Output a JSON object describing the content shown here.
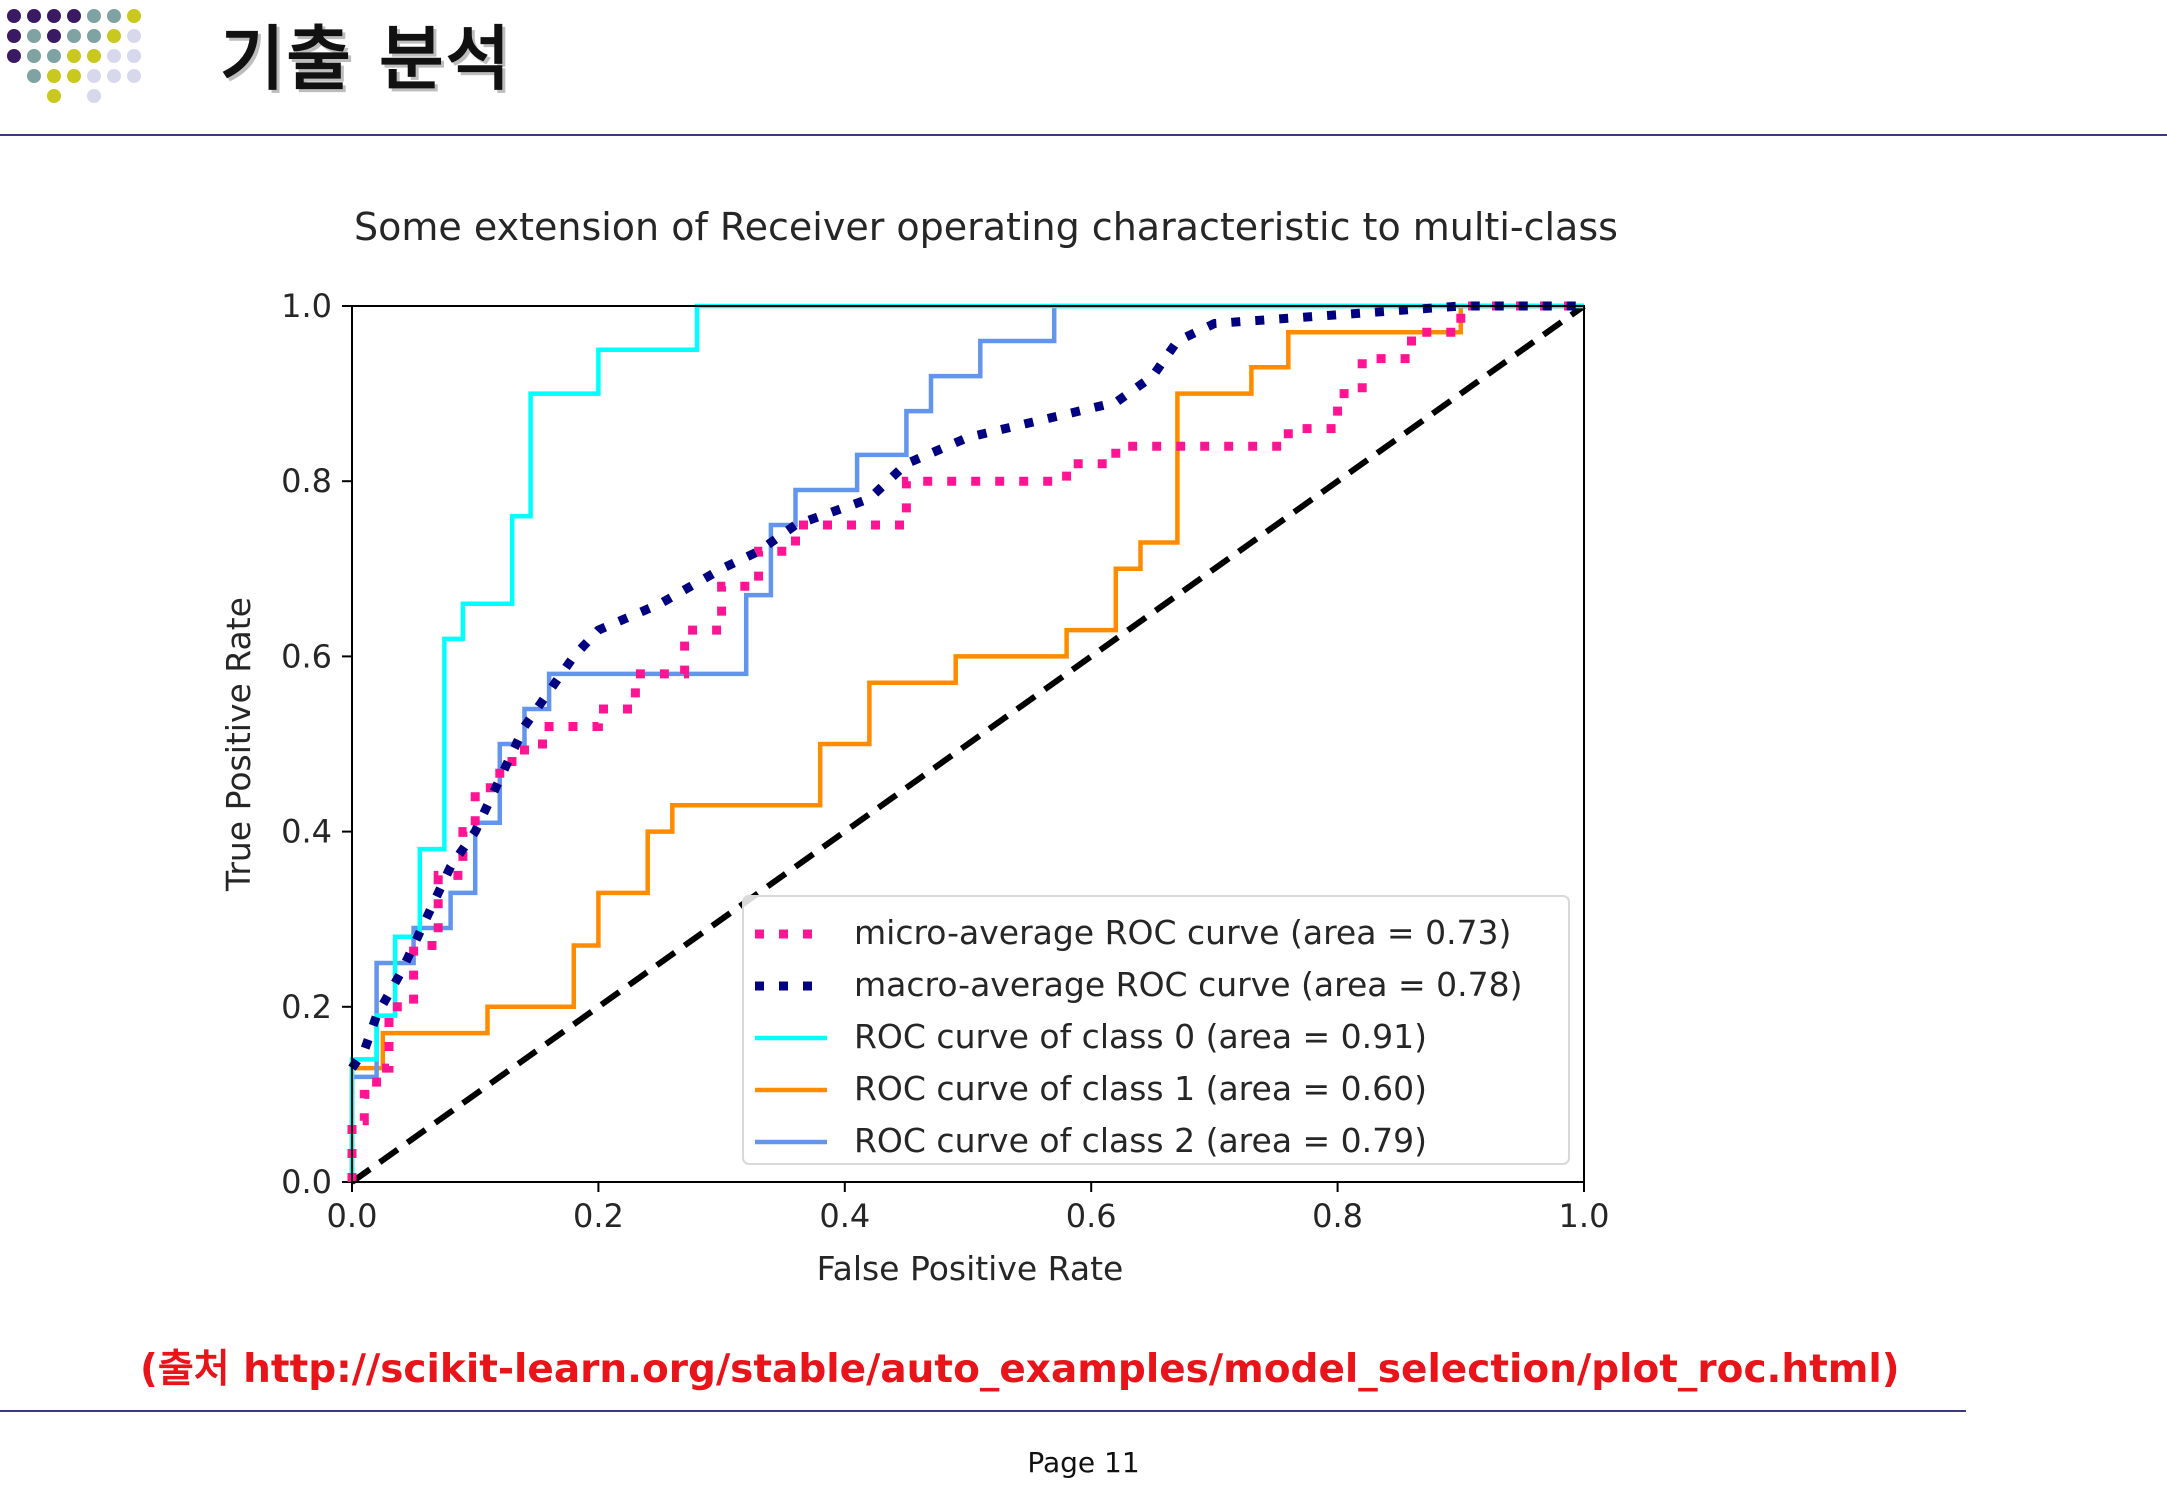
{
  "slide": {
    "title": "기출 분석",
    "source_note": "(출처 http://scikit-learn.org/stable/auto_examples/model_selection/plot_roc.html)",
    "page_label": "Page 11"
  },
  "colors": {
    "dot_purple": "#3b1a64",
    "dot_teal": "#7fa3a3",
    "dot_yellow": "#c8c81e",
    "dot_lilac": "#d8d8ec",
    "rule": "#3a3a7a",
    "source_text": "#e8141a"
  },
  "chart_data": {
    "type": "line",
    "title": "Some extension of Receiver operating characteristic to multi-class",
    "xlabel": "False Positive Rate",
    "ylabel": "True Positive Rate",
    "xlim": [
      0.0,
      1.0
    ],
    "ylim": [
      0.0,
      1.0
    ],
    "xticks": [
      "0.0",
      "0.2",
      "0.4",
      "0.6",
      "0.8",
      "1.0"
    ],
    "yticks": [
      "0.0",
      "0.2",
      "0.4",
      "0.6",
      "0.8",
      "1.0"
    ],
    "grid": false,
    "legend_position": "lower-right",
    "series": [
      {
        "name": "micro-average ROC curve (area = 0.73)",
        "color": "deeppink",
        "style": "dotted",
        "x": [
          0.0,
          0.0,
          0.01,
          0.01,
          0.02,
          0.02,
          0.03,
          0.03,
          0.05,
          0.05,
          0.07,
          0.07,
          0.09,
          0.09,
          0.1,
          0.1,
          0.12,
          0.12,
          0.14,
          0.14,
          0.16,
          0.16,
          0.2,
          0.2,
          0.23,
          0.23,
          0.27,
          0.27,
          0.3,
          0.3,
          0.33,
          0.33,
          0.36,
          0.36,
          0.45,
          0.45,
          0.49,
          0.49,
          0.58,
          0.58,
          0.62,
          0.62,
          0.76,
          0.76,
          0.8,
          0.8,
          0.82,
          0.82,
          0.86,
          0.86,
          0.9,
          0.9,
          0.95,
          0.95,
          1.0
        ],
        "y": [
          0.0,
          0.07,
          0.07,
          0.1,
          0.1,
          0.13,
          0.13,
          0.2,
          0.2,
          0.27,
          0.27,
          0.35,
          0.35,
          0.4,
          0.4,
          0.45,
          0.45,
          0.48,
          0.48,
          0.5,
          0.5,
          0.52,
          0.52,
          0.54,
          0.54,
          0.58,
          0.58,
          0.63,
          0.63,
          0.68,
          0.68,
          0.72,
          0.72,
          0.75,
          0.75,
          0.8,
          0.8,
          0.8,
          0.8,
          0.82,
          0.82,
          0.84,
          0.84,
          0.86,
          0.86,
          0.9,
          0.9,
          0.94,
          0.94,
          0.97,
          0.97,
          1.0,
          1.0,
          1.0,
          1.0
        ]
      },
      {
        "name": "macro-average ROC curve (area = 0.78)",
        "color": "navy",
        "style": "dotted",
        "x": [
          0.0,
          0.01,
          0.02,
          0.04,
          0.06,
          0.08,
          0.1,
          0.12,
          0.14,
          0.16,
          0.18,
          0.2,
          0.25,
          0.3,
          0.33,
          0.36,
          0.42,
          0.45,
          0.5,
          0.56,
          0.62,
          0.65,
          0.67,
          0.7,
          0.8,
          0.9,
          1.0
        ],
        "y": [
          0.13,
          0.15,
          0.19,
          0.24,
          0.3,
          0.36,
          0.4,
          0.46,
          0.52,
          0.56,
          0.6,
          0.63,
          0.66,
          0.7,
          0.72,
          0.75,
          0.78,
          0.82,
          0.85,
          0.87,
          0.89,
          0.92,
          0.96,
          0.98,
          0.99,
          1.0,
          1.0
        ]
      },
      {
        "name": "ROC curve of class 0 (area = 0.91)",
        "color": "aqua",
        "style": "solid",
        "x": [
          0.0,
          0.0,
          0.02,
          0.02,
          0.035,
          0.035,
          0.055,
          0.055,
          0.075,
          0.075,
          0.09,
          0.09,
          0.13,
          0.13,
          0.145,
          0.145,
          0.2,
          0.2,
          0.28,
          0.28,
          1.0
        ],
        "y": [
          0.0,
          0.14,
          0.14,
          0.19,
          0.19,
          0.28,
          0.28,
          0.38,
          0.38,
          0.62,
          0.62,
          0.66,
          0.66,
          0.76,
          0.76,
          0.9,
          0.9,
          0.95,
          0.95,
          1.0,
          1.0
        ]
      },
      {
        "name": "ROC curve of class 1 (area = 0.60)",
        "color": "darkorange",
        "style": "solid",
        "x": [
          0.0,
          0.0,
          0.025,
          0.025,
          0.11,
          0.11,
          0.18,
          0.18,
          0.2,
          0.2,
          0.24,
          0.24,
          0.26,
          0.26,
          0.38,
          0.38,
          0.42,
          0.42,
          0.49,
          0.49,
          0.58,
          0.58,
          0.62,
          0.62,
          0.64,
          0.64,
          0.67,
          0.67,
          0.73,
          0.73,
          0.76,
          0.76,
          0.9,
          0.9,
          1.0
        ],
        "y": [
          0.0,
          0.13,
          0.13,
          0.17,
          0.17,
          0.2,
          0.2,
          0.27,
          0.27,
          0.33,
          0.33,
          0.4,
          0.4,
          0.43,
          0.43,
          0.5,
          0.5,
          0.57,
          0.57,
          0.6,
          0.6,
          0.63,
          0.63,
          0.7,
          0.7,
          0.73,
          0.73,
          0.9,
          0.9,
          0.93,
          0.93,
          0.97,
          0.97,
          1.0,
          1.0
        ]
      },
      {
        "name": "ROC curve of class 2 (area = 0.79)",
        "color": "cornflowerblue",
        "style": "solid",
        "x": [
          0.0,
          0.0,
          0.02,
          0.02,
          0.05,
          0.05,
          0.08,
          0.08,
          0.1,
          0.1,
          0.12,
          0.12,
          0.14,
          0.14,
          0.16,
          0.16,
          0.18,
          0.18,
          0.32,
          0.32,
          0.34,
          0.34,
          0.36,
          0.36,
          0.41,
          0.41,
          0.45,
          0.45,
          0.47,
          0.47,
          0.51,
          0.51,
          0.57,
          0.57,
          1.0
        ],
        "y": [
          0.0,
          0.12,
          0.12,
          0.25,
          0.25,
          0.29,
          0.29,
          0.33,
          0.33,
          0.41,
          0.41,
          0.5,
          0.5,
          0.54,
          0.54,
          0.58,
          0.58,
          0.58,
          0.58,
          0.67,
          0.67,
          0.75,
          0.75,
          0.79,
          0.79,
          0.83,
          0.83,
          0.88,
          0.88,
          0.92,
          0.92,
          0.96,
          0.96,
          1.0,
          1.0
        ]
      },
      {
        "name": "",
        "color": "black",
        "style": "dashed",
        "x": [
          0.0,
          1.0
        ],
        "y": [
          0.0,
          1.0
        ]
      }
    ],
    "legend": [
      "micro-average ROC curve (area = 0.73)",
      "macro-average ROC curve (area = 0.78)",
      "ROC curve of class 0 (area = 0.91)",
      "ROC curve of class 1 (area = 0.60)",
      "ROC curve of class 2 (area = 0.79)"
    ]
  }
}
